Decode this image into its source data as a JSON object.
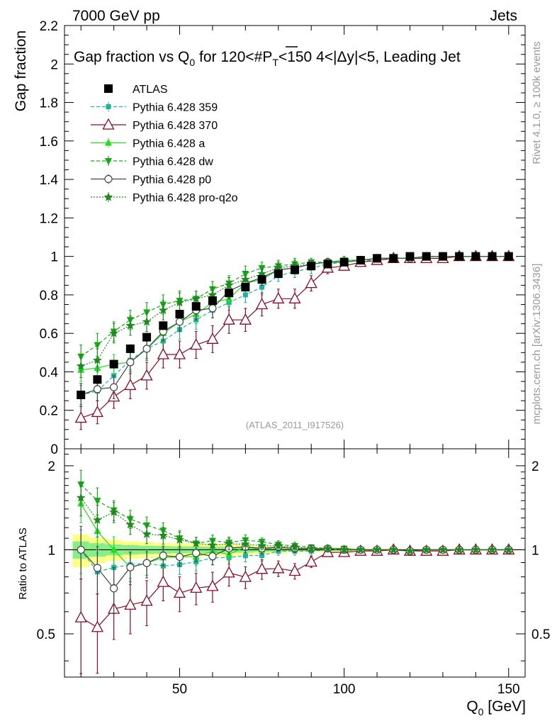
{
  "header": {
    "left": "7000 GeV pp",
    "right": "Jets",
    "title": "Gap fraction vs Q",
    "title_sub": "0",
    "title_rest": " for 120<#P",
    "title_sub2": "T",
    "title_end": "<150  4<|Δy|<5, Leading Jet",
    "rivet": "Rivet 4.1.0, ≥ 100k events",
    "mcplots": "mcplots.cern.ch [arXiv:1306.3436]",
    "analysis": "(ATLAS_2011_I917526)"
  },
  "colors": {
    "atlas": "#000000",
    "p359": "#1db39b",
    "p370": "#8b0a24",
    "pa": "#22dd22",
    "pdw": "#17a817",
    "pp0": "#444444",
    "pq2o": "#1f8a1f",
    "band_outer": "#ffff88",
    "band_inner": "#88ee88"
  },
  "chart_data": {
    "type": "line",
    "title": "Gap fraction vs Q0 for 120<#PT<150  4<|Δy|<5, Leading Jet",
    "xlabel": "Q",
    "xlabel_sub": "0",
    "xlabel_unit": " [GeV]",
    "ylabel": "Gap fraction",
    "ratio_ylabel": "Ratio to ATLAS",
    "xlim": [
      15,
      155
    ],
    "ylim": [
      0,
      2.2
    ],
    "ratio_ylim": [
      0.35,
      2.3
    ],
    "x_ticks": [
      "50",
      "100",
      "150"
    ],
    "y_ticks": [
      "0",
      "0.2",
      "0.4",
      "0.6",
      "0.8",
      "1",
      "1.2",
      "1.4",
      "1.6",
      "1.8",
      "2",
      "2.2"
    ],
    "ratio_ticks": [
      "0.5",
      "1",
      "2"
    ],
    "x": [
      20,
      25,
      30,
      35,
      40,
      45,
      50,
      55,
      60,
      65,
      70,
      75,
      80,
      85,
      90,
      95,
      100,
      105,
      110,
      115,
      120,
      125,
      130,
      135,
      140,
      145,
      150
    ],
    "series": [
      {
        "key": "atlas",
        "name": "ATLAS",
        "style": "data",
        "values": [
          0.28,
          0.36,
          0.44,
          0.52,
          0.58,
          0.64,
          0.7,
          0.74,
          0.77,
          0.81,
          0.84,
          0.88,
          0.91,
          0.93,
          0.95,
          0.96,
          0.97,
          0.98,
          0.99,
          0.99,
          1.0,
          1.0,
          1.0,
          1.0,
          1.0,
          1.0,
          1.0
        ],
        "errors": [
          0.02,
          0.02,
          0.02,
          0.02,
          0.02,
          0.02,
          0.02,
          0.02,
          0.02,
          0.02,
          0.02,
          0.015,
          0.015,
          0.01,
          0.01,
          0.01,
          0.01,
          0.005,
          0.005,
          0.005,
          0.003,
          0.003,
          0.003,
          0.003,
          0.003,
          0.003,
          0.003
        ]
      },
      {
        "key": "p359",
        "name": "Pythia 6.428 359",
        "marker": "square-small",
        "dash": "5,3",
        "values": [
          0.28,
          0.3,
          0.38,
          0.46,
          0.52,
          0.56,
          0.62,
          0.67,
          0.72,
          0.76,
          0.8,
          0.84,
          0.9,
          0.92,
          0.94,
          0.96,
          0.97,
          0.98,
          0.98,
          0.99,
          0.99,
          1.0,
          1.0,
          1.0,
          1.0,
          1.0,
          1.0
        ],
        "errors": [
          0.05,
          0.05,
          0.05,
          0.05,
          0.05,
          0.05,
          0.05,
          0.05,
          0.04,
          0.04,
          0.04,
          0.04,
          0.03,
          0.03,
          0.03,
          0.02,
          0.02,
          0.02,
          0.02,
          0.01,
          0.01,
          0.01,
          0.01,
          0.01,
          0.01,
          0.01,
          0.01
        ]
      },
      {
        "key": "p370",
        "name": "Pythia 6.428 370",
        "marker": "triangle-open",
        "dash": "",
        "values": [
          0.16,
          0.19,
          0.27,
          0.33,
          0.38,
          0.49,
          0.49,
          0.54,
          0.57,
          0.67,
          0.67,
          0.75,
          0.78,
          0.78,
          0.86,
          0.94,
          0.95,
          0.97,
          0.98,
          0.99,
          0.99,
          0.99,
          0.99,
          1.0,
          1.0,
          1.0,
          1.0
        ],
        "errors": [
          0.06,
          0.06,
          0.06,
          0.07,
          0.07,
          0.07,
          0.07,
          0.07,
          0.07,
          0.07,
          0.06,
          0.06,
          0.05,
          0.05,
          0.04,
          0.03,
          0.02,
          0.02,
          0.01,
          0.01,
          0.01,
          0.01,
          0.01,
          0.01,
          0.01,
          0.01,
          0.01
        ]
      },
      {
        "key": "pa",
        "name": "Pythia 6.428 a",
        "marker": "triangle",
        "dash": "",
        "values": [
          0.41,
          0.42,
          0.44,
          0.45,
          0.52,
          0.6,
          0.66,
          0.7,
          0.76,
          0.78,
          0.86,
          0.88,
          0.93,
          0.94,
          0.96,
          0.97,
          0.98,
          0.98,
          0.99,
          0.99,
          0.99,
          1.0,
          1.0,
          1.0,
          1.0,
          1.0,
          1.0
        ],
        "errors": [
          0.06,
          0.06,
          0.05,
          0.05,
          0.05,
          0.05,
          0.05,
          0.05,
          0.04,
          0.04,
          0.04,
          0.03,
          0.03,
          0.03,
          0.02,
          0.02,
          0.02,
          0.01,
          0.01,
          0.01,
          0.01,
          0.01,
          0.01,
          0.01,
          0.01,
          0.01,
          0.01
        ]
      },
      {
        "key": "pdw",
        "name": "Pythia 6.428 dw",
        "marker": "triangle-down",
        "dash": "5,3",
        "values": [
          0.48,
          0.54,
          0.61,
          0.67,
          0.71,
          0.75,
          0.77,
          0.78,
          0.83,
          0.86,
          0.91,
          0.94,
          0.95,
          0.96,
          0.97,
          0.97,
          0.98,
          0.98,
          0.99,
          0.99,
          0.99,
          1.0,
          1.0,
          1.0,
          1.0,
          1.0,
          1.0
        ],
        "errors": [
          0.06,
          0.06,
          0.05,
          0.05,
          0.05,
          0.05,
          0.05,
          0.04,
          0.04,
          0.04,
          0.04,
          0.03,
          0.03,
          0.03,
          0.02,
          0.02,
          0.02,
          0.01,
          0.01,
          0.01,
          0.01,
          0.01,
          0.01,
          0.01,
          0.01,
          0.01,
          0.01
        ]
      },
      {
        "key": "pp0",
        "name": "Pythia 6.428 p0",
        "marker": "circle-open",
        "dash": "",
        "values": [
          0.28,
          0.31,
          0.32,
          0.45,
          0.52,
          0.61,
          0.66,
          0.72,
          0.73,
          0.82,
          0.86,
          0.89,
          0.93,
          0.94,
          0.96,
          0.97,
          0.97,
          0.98,
          0.99,
          0.99,
          0.99,
          1.0,
          1.0,
          1.0,
          1.0,
          1.0,
          1.0
        ],
        "errors": [
          0.06,
          0.06,
          0.06,
          0.06,
          0.06,
          0.05,
          0.05,
          0.05,
          0.05,
          0.04,
          0.04,
          0.04,
          0.03,
          0.03,
          0.02,
          0.02,
          0.02,
          0.01,
          0.01,
          0.01,
          0.01,
          0.01,
          0.01,
          0.01,
          0.01,
          0.01,
          0.01
        ]
      },
      {
        "key": "pq2o",
        "name": "Pythia 6.428 pro-q2o",
        "marker": "star",
        "dash": "2,2",
        "values": [
          0.43,
          0.46,
          0.6,
          0.64,
          0.66,
          0.72,
          0.76,
          0.78,
          0.8,
          0.85,
          0.88,
          0.91,
          0.94,
          0.95,
          0.96,
          0.97,
          0.97,
          0.98,
          0.99,
          0.99,
          0.99,
          1.0,
          1.0,
          1.0,
          1.0,
          1.0,
          1.0
        ],
        "errors": [
          0.06,
          0.06,
          0.05,
          0.05,
          0.05,
          0.05,
          0.05,
          0.04,
          0.04,
          0.04,
          0.04,
          0.03,
          0.03,
          0.03,
          0.02,
          0.02,
          0.02,
          0.01,
          0.01,
          0.01,
          0.01,
          0.01,
          0.01,
          0.01,
          0.01,
          0.01,
          0.01
        ]
      }
    ]
  }
}
